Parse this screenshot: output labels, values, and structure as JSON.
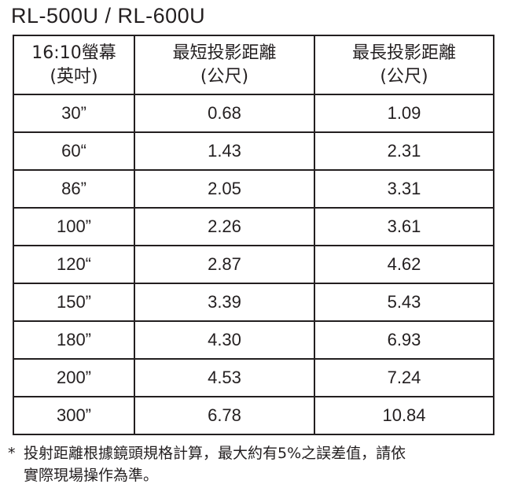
{
  "title": "RL-500U / RL-600U",
  "table": {
    "headers": [
      {
        "line1": "16:10螢幕",
        "line2": "(英吋)"
      },
      {
        "line1": "最短投影距離",
        "line2": "(公尺)"
      },
      {
        "line1": "最長投影距離",
        "line2": "(公尺)"
      }
    ],
    "rows": [
      [
        "30”",
        "0.68",
        "1.09"
      ],
      [
        "60“",
        "1.43",
        "2.31"
      ],
      [
        "86”",
        "2.05",
        "3.31"
      ],
      [
        "100”",
        "2.26",
        "3.61"
      ],
      [
        "120“",
        "2.87",
        "4.62"
      ],
      [
        "150”",
        "3.39",
        "5.43"
      ],
      [
        "180”",
        "4.30",
        "6.93"
      ],
      [
        "200”",
        "4.53",
        "7.24"
      ],
      [
        "300”",
        "6.78",
        "10.84"
      ]
    ]
  },
  "footnote": {
    "mark": "*",
    "line1": "投射距離根據鏡頭規格計算，最大約有5%之誤差值，請依",
    "line2": "實際現場操作為準。"
  }
}
